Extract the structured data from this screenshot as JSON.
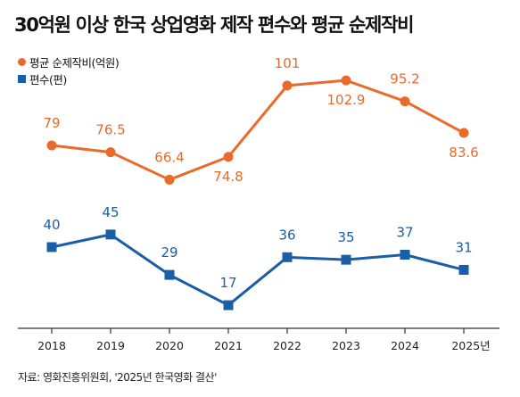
{
  "title": "30억원 이상 한국 상업영화 제작 편수와 평균 순제작비",
  "legend": {
    "cost_label": "평균 순제작비(억원)",
    "count_label": "편수(편)"
  },
  "source": "자료: 영화진흥위원회, '2025년 한국영화 결산'",
  "colors": {
    "cost": "#ea6a2a",
    "count": "#1a5ea8",
    "axis": "#333333"
  },
  "chart_data": {
    "type": "line",
    "title": "30억원 이상 한국 상업영화 제작 편수와 평균 순제작비",
    "categories": [
      "2018",
      "2019",
      "2020",
      "2021",
      "2022",
      "2023",
      "2024",
      "2025년"
    ],
    "series": [
      {
        "name": "평균 순제작비(억원)",
        "values": [
          79,
          76.5,
          66.4,
          74.8,
          101,
          102.9,
          95.2,
          83.6
        ],
        "labels": [
          "79",
          "76.5",
          "66.4",
          "74.8",
          "101",
          "102.9",
          "95.2",
          "83.6"
        ]
      },
      {
        "name": "편수(편)",
        "values": [
          40,
          45,
          29,
          17,
          36,
          35,
          37,
          31
        ],
        "labels": [
          "40",
          "45",
          "29",
          "17",
          "36",
          "35",
          "37",
          "31"
        ]
      }
    ],
    "legend_position": "top-left",
    "grid": false
  }
}
